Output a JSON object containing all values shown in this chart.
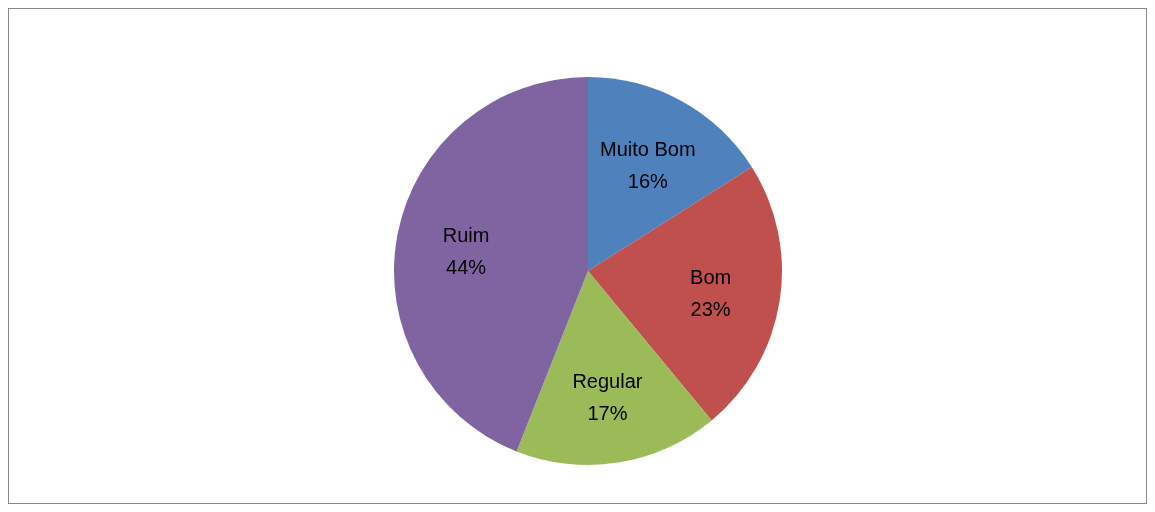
{
  "chart_data": {
    "type": "pie",
    "categories": [
      "Muito Bom",
      "Bom",
      "Regular",
      "Ruim"
    ],
    "values": [
      16,
      23,
      17,
      44
    ],
    "colors": [
      "#4f81bd",
      "#c0504d",
      "#9bbb59",
      "#8064a2"
    ],
    "value_labels": [
      "16%",
      "23%",
      "17%",
      "44%"
    ]
  }
}
